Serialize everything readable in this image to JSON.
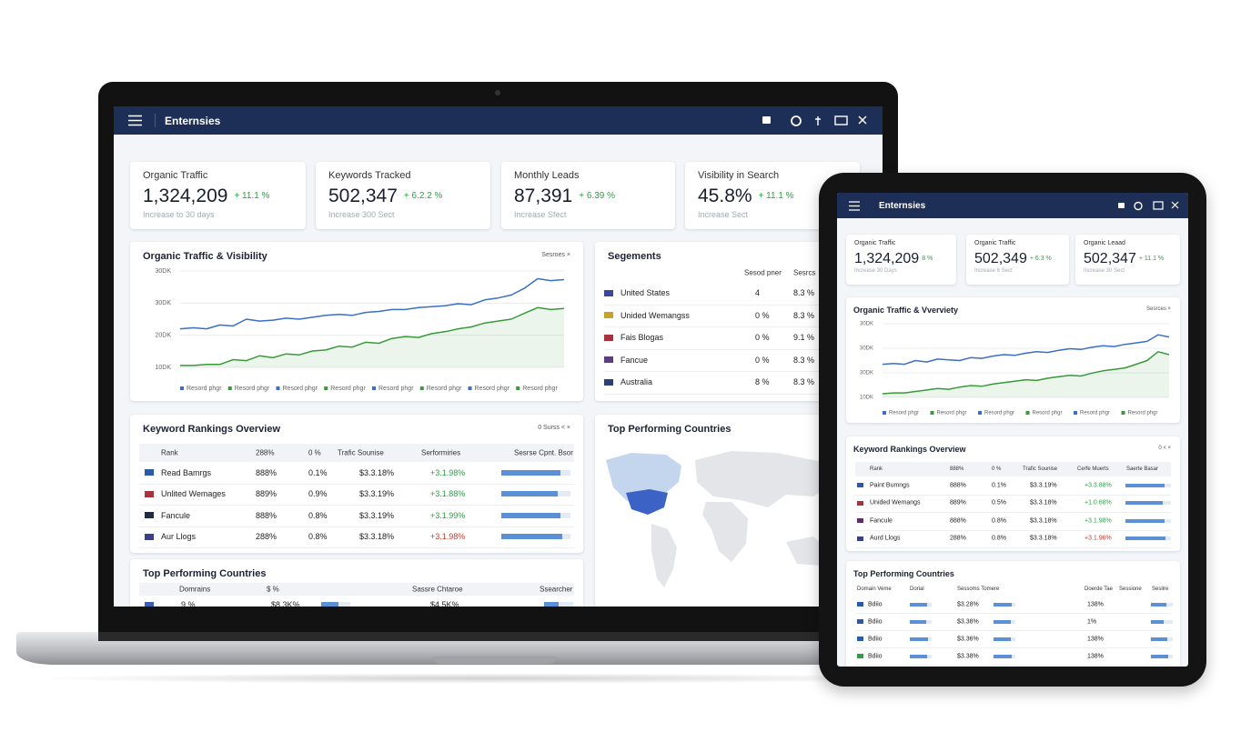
{
  "laptop": {
    "app_title": "Enternsies",
    "kpis": [
      {
        "label": "Organic Traffic",
        "value": "1,324,209",
        "change": "+ 11.1 %",
        "note": "Increase to 30 days"
      },
      {
        "label": "Keywords Tracked",
        "value": "502,347",
        "change": "+ 6.2.2 %",
        "note": "Increase 300 Sect"
      },
      {
        "label": "Monthly Leads",
        "value": "87,391",
        "change": "+ 6.39 %",
        "note": "Increase Sfect"
      },
      {
        "label": "Visibility in Search",
        "value": "45.8%",
        "change": "+ 11.1 %",
        "note": "Increase Sect"
      }
    ],
    "traffic": {
      "title": "Organic Traffic & Visibility",
      "controls": "Sesroes ×",
      "type": "line",
      "y_labels": [
        "30DK",
        "30DK",
        "20DK",
        "10DK"
      ],
      "ylim": [
        0,
        100
      ],
      "legend": [
        "Resord phgr",
        "Resord phgr",
        "Resord phgr",
        "Resord phgr",
        "Resord phgr",
        "Resord phgr",
        "Resord phgr",
        "Resord phgr"
      ],
      "series": [
        {
          "color": "#3a6fc4",
          "area": false,
          "values": [
            40,
            41,
            40,
            44,
            43,
            50,
            48,
            49,
            51,
            50,
            52,
            54,
            55,
            54,
            57,
            58,
            60,
            60,
            62,
            63,
            64,
            66,
            65,
            70,
            72,
            75,
            82,
            92,
            90,
            91
          ]
        },
        {
          "color": "#3a9a3a",
          "area": true,
          "values": [
            2,
            2,
            3,
            3,
            8,
            7,
            12,
            10,
            14,
            13,
            17,
            18,
            22,
            21,
            26,
            25,
            30,
            32,
            31,
            35,
            37,
            40,
            42,
            46,
            48,
            50,
            56,
            62,
            60,
            61
          ]
        }
      ]
    },
    "segments": {
      "title": "Segements",
      "headers": [
        "Sesod pner",
        "Sesrcs"
      ],
      "rows": [
        {
          "cells": [
            "United States",
            "4",
            "8.3 %"
          ],
          "flag": "#3a4a9a"
        },
        {
          "cells": [
            "Unided Wemangss",
            "0 %",
            "8.3 %"
          ],
          "flag": "#c9a227"
        },
        {
          "cells": [
            "Fais Blogas",
            "0 %",
            "9.1 %"
          ],
          "flag": "#a8323e"
        },
        {
          "cells": [
            "Fancue",
            "0 %",
            "8.3 %"
          ],
          "flag": "#5a3f7a"
        },
        {
          "cells": [
            "Australia",
            "8 %",
            "8.3 %"
          ],
          "flag": "#2b3f7a"
        }
      ]
    },
    "keywords": {
      "title": "Keyword Rankings Overview",
      "controls": "0 Surss  <  ×",
      "headers": [
        "Rank",
        "288%",
        "0 %",
        "Trafic Sounise",
        "Serformiries",
        "Sesrse Cpnt. Bsor"
      ],
      "rows": [
        {
          "cells": [
            "Read Bamrgs",
            "888%",
            "0.1%",
            "$3.3.18%",
            "+3.1.98%"
          ],
          "flag": "#2b5aa8",
          "change_color": "#2e9e44",
          "bars": [
            85
          ]
        },
        {
          "cells": [
            "Unlited Wemages",
            "889%",
            "0.9%",
            "$3.3.19%",
            "+3.1.88%"
          ],
          "flag": "#a8323e",
          "change_color": "#2e9e44",
          "bars": [
            82
          ]
        },
        {
          "cells": [
            "Fancule",
            "888%",
            "0.8%",
            "$3.3.19%",
            "+3.1.99%"
          ],
          "flag": "#1f2a44",
          "change_color": "#2e9e44",
          "bars": [
            86
          ]
        },
        {
          "cells": [
            "Aur Llogs",
            "288%",
            "0.8%",
            "$3.3.18%",
            "+3.1.98%"
          ],
          "flag": "#3a3f8a",
          "change_color": "#c0392b",
          "bars": [
            88
          ]
        }
      ]
    },
    "map_title": "Top Performing Countries",
    "countries": {
      "title": "Top Performing Countries",
      "headers": [
        "Domrains",
        "$ %",
        "Sassre Chtaroe",
        "Ssearcher"
      ],
      "rows": [
        {
          "cells": [
            "9 %",
            "$8.3K%",
            "$4.5K%"
          ],
          "flag": "#3a5fb0",
          "bars": [
            60,
            50
          ]
        }
      ]
    }
  },
  "tablet": {
    "app_title": "Enternsies",
    "kpis": [
      {
        "label": "Organic Traffic",
        "value": "1,324,209",
        "change": "8 %",
        "note": "Increase 30 Days"
      },
      {
        "label": "Organic Traffic",
        "value": "502,349",
        "change": "+ 6.3 %",
        "note": "Increase 6 Sect"
      },
      {
        "label": "Organic Leaad",
        "value": "502,347",
        "change": "+ 11.1 %",
        "note": "Increase 30 Sect"
      }
    ],
    "traffic": {
      "title": "Organic Traffic & Vverviety",
      "controls": "Sesrces ×",
      "type": "line",
      "y_labels": [
        "30DK",
        "30DK",
        "30DK",
        "10DK"
      ],
      "ylim": [
        0,
        100
      ],
      "legend": [
        "Resord phgr",
        "Resord phgr",
        "Resord phgr",
        "Resord phgr",
        "Resord phgr",
        "Resord phgr"
      ],
      "series": [
        {
          "color": "#3a6fc4",
          "area": false,
          "values": [
            45,
            46,
            45,
            50,
            48,
            52,
            51,
            50,
            54,
            53,
            56,
            58,
            57,
            60,
            62,
            61,
            64,
            66,
            65,
            68,
            70,
            69,
            72,
            74,
            76,
            85,
            82
          ]
        },
        {
          "color": "#3a9a3a",
          "area": true,
          "values": [
            5,
            6,
            6,
            8,
            10,
            12,
            11,
            14,
            16,
            15,
            18,
            20,
            22,
            24,
            23,
            26,
            28,
            30,
            29,
            33,
            36,
            38,
            40,
            45,
            50,
            62,
            58
          ]
        }
      ]
    },
    "keywords": {
      "title": "Keyword Rankings Overview",
      "controls": "0  <  ×",
      "headers": [
        "Rank",
        "888%",
        "0 %",
        "Trafic Sounise",
        "Cerfe Muerts",
        "Saerte Basar"
      ],
      "rows": [
        {
          "cells": [
            "Paint Bumngs",
            "888%",
            "0.1%",
            "$3.3.19%",
            "+3.3.88%"
          ],
          "flag": "#2b5aa8",
          "change_color": "#2e9e44",
          "bars": [
            85
          ]
        },
        {
          "cells": [
            "Unided Wemangs",
            "889%",
            "0.5%",
            "$3.3.18%",
            "+1.0.68%"
          ],
          "flag": "#a8323e",
          "change_color": "#2e9e44",
          "bars": [
            82
          ]
        },
        {
          "cells": [
            "Fancule",
            "888%",
            "0.8%",
            "$3.3.18%",
            "+3.1.98%"
          ],
          "flag": "#5a2f6a",
          "change_color": "#2e9e44",
          "bars": [
            86
          ]
        },
        {
          "cells": [
            "Aurd Llogs",
            "288%",
            "0.8%",
            "$3.3.18%",
            "+3.1.96%"
          ],
          "flag": "#3a3f8a",
          "change_color": "#c0392b",
          "bars": [
            88
          ]
        }
      ]
    },
    "countries": {
      "title": "Top Performing Countries",
      "headers": [
        "Domain Veme",
        "Dorial",
        "Sessoms Tomere",
        "Doerde Tae",
        "Sessione",
        "Seslire"
      ],
      "rows": [
        {
          "cells": [
            "Bdiio",
            "$3.28%",
            "138%"
          ],
          "flag": "#2b5aa8",
          "bars": [
            80,
            85,
            70
          ]
        },
        {
          "cells": [
            "Bdiio",
            "$3.38%",
            "1%"
          ],
          "flag": "#2b5aa8",
          "bars": [
            75,
            80,
            60
          ]
        },
        {
          "cells": [
            "Bdiio",
            "$3.36%",
            "138%"
          ],
          "flag": "#2b5aa8",
          "bars": [
            82,
            78,
            75
          ]
        },
        {
          "cells": [
            "Bdiio",
            "$3.38%",
            "138%"
          ],
          "flag": "#2e9e44",
          "bars": [
            78,
            82,
            80
          ]
        }
      ]
    }
  }
}
